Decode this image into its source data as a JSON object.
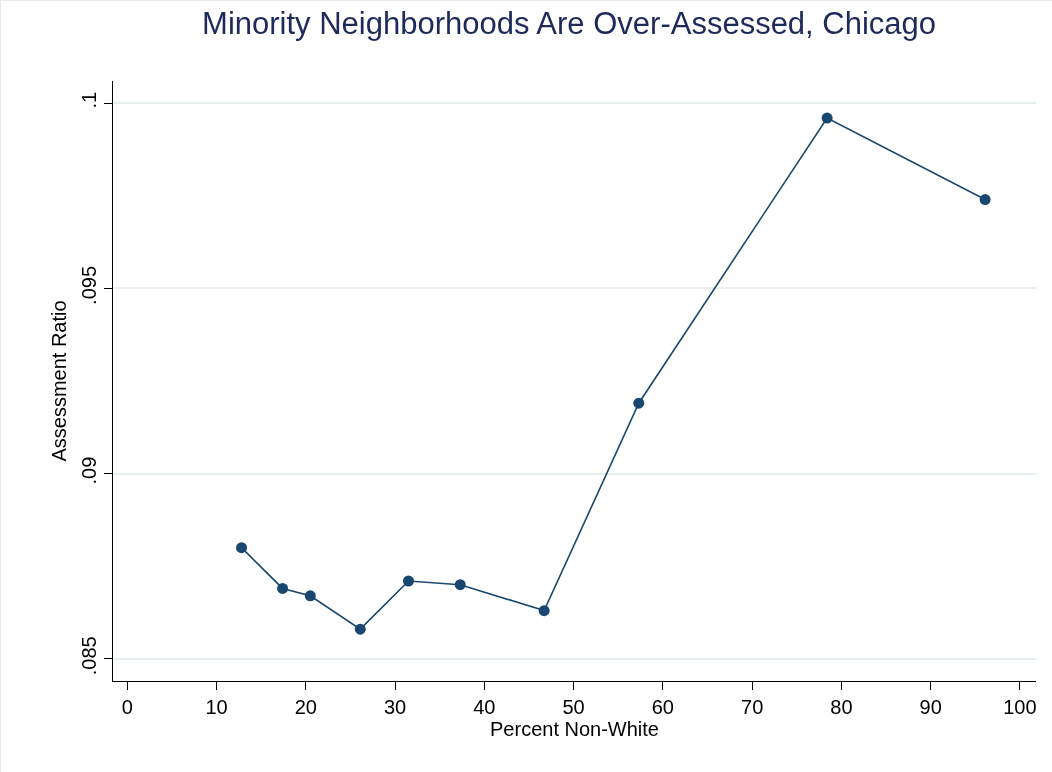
{
  "chart_data": {
    "type": "line",
    "title": "Minority Neighborhoods Are Over-Assessed, Chicago",
    "xlabel": "Percent Non-White",
    "ylabel": "Assessment Ratio",
    "x": [
      12.8,
      17.4,
      20.5,
      26.1,
      31.5,
      37.3,
      46.7,
      57.3,
      78.4,
      96.1
    ],
    "series": [
      {
        "color": "#1a476f",
        "values": [
          0.088,
          0.0869,
          0.0867,
          0.0858,
          0.0871,
          0.087,
          0.0863,
          0.0919,
          0.0996,
          0.0974
        ]
      }
    ],
    "xlim": [
      -1.6,
      101.8
    ],
    "xticks": [
      0,
      10,
      20,
      30,
      40,
      50,
      60,
      70,
      80,
      90,
      100
    ],
    "ylim": [
      0.0844,
      0.1006
    ],
    "yticks": [
      {
        "value": 0.085,
        "label": ".085"
      },
      {
        "value": 0.09,
        "label": ".09"
      },
      {
        "value": 0.095,
        "label": ".095"
      },
      {
        "value": 0.1,
        "label": ".1"
      }
    ],
    "grid": "y",
    "marker": "circle",
    "line_style": "solid",
    "legend": false
  }
}
